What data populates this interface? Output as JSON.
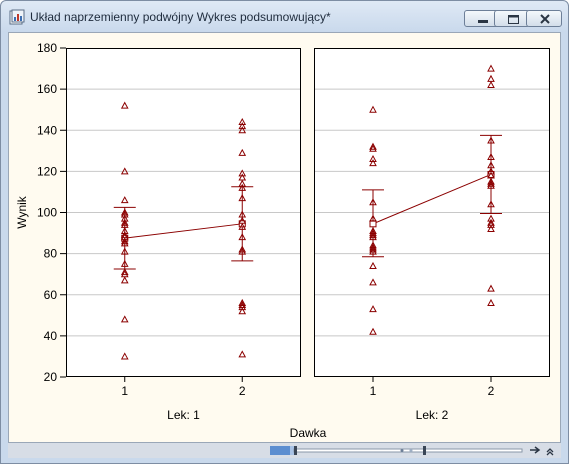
{
  "window": {
    "title": "Układ naprzemienny podwójny Wykres podsumowujący*",
    "icon": "chart-document-icon",
    "buttons": [
      "minimize-icon",
      "restore-icon",
      "close-icon"
    ]
  },
  "colors": {
    "marker": "#8b0000",
    "line": "#8b0000",
    "grid": "#c8c8c8",
    "background": "#fffbf0"
  },
  "chart_data": {
    "type": "scatter",
    "ylabel": "Wynik",
    "xlabel": "Dawka",
    "ylim": [
      20,
      180
    ],
    "yticks": [
      20,
      40,
      60,
      80,
      100,
      120,
      140,
      160,
      180
    ],
    "grid": "horizontal",
    "panels": [
      {
        "label": "Lek: 1",
        "categories": [
          "1",
          "2"
        ],
        "points": [
          [
            152,
            120,
            106,
            100,
            99,
            97,
            95,
            94,
            91,
            89,
            88,
            86,
            85,
            81,
            75,
            71,
            70,
            67,
            48,
            30
          ],
          [
            144,
            142,
            140,
            129,
            119,
            117,
            114,
            112,
            107,
            99,
            96,
            93,
            88,
            82,
            81,
            56,
            55,
            54,
            52,
            31
          ]
        ],
        "means": [
          87.5,
          94.5
        ],
        "error_bars": [
          [
            72.5,
            102.5
          ],
          [
            76.5,
            112.5
          ]
        ]
      },
      {
        "label": "Lek: 2",
        "categories": [
          "1",
          "2"
        ],
        "points": [
          [
            150,
            132,
            131,
            126,
            124,
            105,
            97,
            91,
            90,
            89,
            88,
            84,
            83,
            82,
            81,
            74,
            66,
            53,
            42
          ],
          [
            170,
            165,
            162,
            135,
            127,
            123,
            120,
            118,
            115,
            114,
            113,
            104,
            97,
            95,
            94,
            92,
            63,
            56
          ]
        ],
        "means": [
          94.5,
          118.5
        ],
        "error_bars": [
          [
            78.5,
            111.0
          ],
          [
            99.5,
            137.5
          ]
        ]
      }
    ]
  },
  "scrollbar": {
    "icons": [
      "grip-icon",
      "slider-left-icon",
      "slider-right-icon",
      "expand-icon"
    ]
  }
}
